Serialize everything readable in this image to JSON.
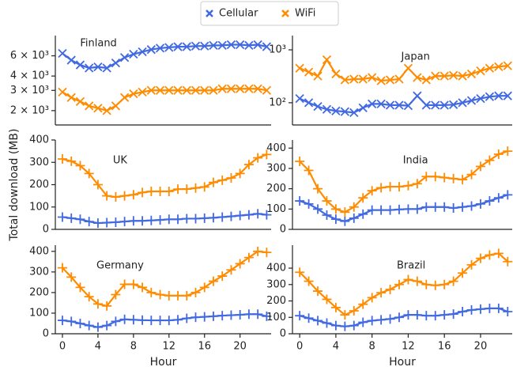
{
  "chart_data": [
    {
      "type": "line",
      "title": "Finland",
      "log": true,
      "marker": "x",
      "x": [
        0,
        1,
        2,
        3,
        4,
        5,
        6,
        7,
        8,
        9,
        10,
        11,
        12,
        13,
        14,
        15,
        16,
        17,
        18,
        19,
        20,
        21,
        22,
        23
      ],
      "xlim": [
        -0.8,
        23.5
      ],
      "ylim": [
        1500,
        9000
      ],
      "yticks": [
        {
          "value": 2000,
          "label": "2 × 10³"
        },
        {
          "value": 3000,
          "label": "3 × 10³"
        },
        {
          "value": 4000,
          "label": "4 × 10³"
        },
        {
          "value": 6000,
          "label": "6 × 10³"
        }
      ],
      "series": [
        {
          "name": "Cellular",
          "color": "#4169e1",
          "values": [
            6300,
            5500,
            5000,
            4700,
            4800,
            4700,
            5200,
            5800,
            6200,
            6500,
            6800,
            7000,
            7100,
            7200,
            7200,
            7300,
            7300,
            7400,
            7400,
            7500,
            7500,
            7400,
            7500,
            7200
          ]
        },
        {
          "name": "WiFi",
          "color": "#ff8c00",
          "values": [
            2900,
            2600,
            2400,
            2200,
            2100,
            2000,
            2200,
            2600,
            2800,
            2900,
            3000,
            3000,
            3000,
            3000,
            3000,
            3000,
            3000,
            3000,
            3100,
            3100,
            3100,
            3100,
            3100,
            3000
          ]
        }
      ]
    },
    {
      "type": "line",
      "title": "Japan",
      "log": true,
      "marker": "x",
      "x": [
        0,
        1,
        2,
        3,
        4,
        5,
        6,
        7,
        8,
        9,
        10,
        11,
        12,
        13,
        14,
        15,
        16,
        17,
        18,
        19,
        20,
        21,
        22,
        23
      ],
      "xlim": [
        -0.8,
        23.5
      ],
      "ylim": [
        38,
        1860
      ],
      "yticks": [
        {
          "value": 100,
          "label": "10²"
        },
        {
          "value": 1000,
          "label": "10³"
        }
      ],
      "series": [
        {
          "name": "Cellular",
          "color": "#4169e1",
          "values": [
            120,
            100,
            85,
            75,
            70,
            68,
            65,
            80,
            95,
            95,
            90,
            90,
            88,
            135,
            90,
            90,
            90,
            92,
            100,
            110,
            120,
            130,
            135,
            135
          ]
        },
        {
          "name": "WiFi",
          "color": "#ff8c00",
          "values": [
            450,
            380,
            320,
            650,
            350,
            270,
            280,
            280,
            300,
            260,
            270,
            280,
            450,
            300,
            270,
            320,
            320,
            330,
            320,
            350,
            400,
            450,
            480,
            500
          ]
        }
      ]
    },
    {
      "type": "line",
      "title": "UK",
      "ylabel": "Total download (MB)",
      "marker": "+",
      "x": [
        0,
        1,
        2,
        3,
        4,
        5,
        6,
        7,
        8,
        9,
        10,
        11,
        12,
        13,
        14,
        15,
        16,
        17,
        18,
        19,
        20,
        21,
        22,
        23
      ],
      "xlim": [
        -0.8,
        23.5
      ],
      "ylim": [
        0,
        400
      ],
      "yticks": [
        0,
        100,
        200,
        300,
        400
      ],
      "series": [
        {
          "name": "Cellular",
          "color": "#4169e1",
          "values": [
            55,
            50,
            45,
            35,
            28,
            30,
            32,
            35,
            38,
            38,
            40,
            42,
            45,
            45,
            48,
            48,
            50,
            52,
            55,
            58,
            62,
            65,
            70,
            65
          ]
        },
        {
          "name": "WiFi",
          "color": "#ff8c00",
          "values": [
            315,
            305,
            285,
            250,
            200,
            150,
            145,
            150,
            155,
            165,
            170,
            170,
            170,
            180,
            180,
            185,
            190,
            210,
            220,
            230,
            250,
            290,
            320,
            335
          ]
        }
      ]
    },
    {
      "type": "line",
      "title": "India",
      "marker": "+",
      "x": [
        0,
        1,
        2,
        3,
        4,
        5,
        6,
        7,
        8,
        9,
        10,
        11,
        12,
        13,
        14,
        15,
        16,
        17,
        18,
        19,
        20,
        21,
        22,
        23
      ],
      "xlim": [
        -0.8,
        23.5
      ],
      "ylim": [
        0,
        440
      ],
      "yticks": [
        0,
        100,
        200,
        300,
        400
      ],
      "series": [
        {
          "name": "Cellular",
          "color": "#4169e1",
          "values": [
            140,
            125,
            100,
            70,
            50,
            40,
            55,
            75,
            95,
            95,
            95,
            98,
            100,
            100,
            110,
            110,
            110,
            105,
            110,
            115,
            125,
            140,
            155,
            170
          ]
        },
        {
          "name": "WiFi",
          "color": "#ff8c00",
          "values": [
            335,
            290,
            200,
            140,
            100,
            85,
            110,
            155,
            190,
            205,
            210,
            210,
            215,
            225,
            260,
            260,
            255,
            250,
            245,
            270,
            310,
            340,
            370,
            385
          ]
        }
      ]
    },
    {
      "type": "line",
      "title": "Germany",
      "xlabel": "Hour",
      "marker": "+",
      "x": [
        0,
        1,
        2,
        3,
        4,
        5,
        6,
        7,
        8,
        9,
        10,
        11,
        12,
        13,
        14,
        15,
        16,
        17,
        18,
        19,
        20,
        21,
        22,
        23
      ],
      "xlim": [
        -0.8,
        23.5
      ],
      "ylim": [
        0,
        430
      ],
      "yticks": [
        0,
        100,
        200,
        300,
        400
      ],
      "xticks": [
        0,
        4,
        8,
        12,
        16,
        20
      ],
      "series": [
        {
          "name": "Cellular",
          "color": "#4169e1",
          "values": [
            65,
            60,
            50,
            40,
            32,
            40,
            60,
            70,
            68,
            66,
            65,
            65,
            65,
            68,
            75,
            80,
            82,
            85,
            88,
            90,
            92,
            95,
            95,
            85
          ]
        },
        {
          "name": "WiFi",
          "color": "#ff8c00",
          "values": [
            320,
            275,
            225,
            180,
            145,
            135,
            190,
            240,
            240,
            225,
            200,
            190,
            185,
            185,
            185,
            200,
            225,
            255,
            280,
            310,
            340,
            370,
            400,
            395
          ]
        }
      ]
    },
    {
      "type": "line",
      "title": "Brazil",
      "xlabel": "Hour",
      "marker": "+",
      "x": [
        0,
        1,
        2,
        3,
        4,
        5,
        6,
        7,
        8,
        9,
        10,
        11,
        12,
        13,
        14,
        15,
        16,
        17,
        18,
        19,
        20,
        21,
        22,
        23
      ],
      "xlim": [
        -0.8,
        23.5
      ],
      "ylim": [
        0,
        540
      ],
      "yticks": [
        0,
        100,
        200,
        300,
        400
      ],
      "xticks": [
        0,
        4,
        8,
        12,
        16,
        20
      ],
      "series": [
        {
          "name": "Cellular",
          "color": "#4169e1",
          "values": [
            110,
            95,
            80,
            65,
            50,
            45,
            50,
            70,
            80,
            85,
            90,
            100,
            115,
            115,
            110,
            110,
            115,
            120,
            135,
            145,
            150,
            155,
            155,
            135
          ]
        },
        {
          "name": "WiFi",
          "color": "#ff8c00",
          "values": [
            375,
            320,
            260,
            210,
            160,
            115,
            140,
            180,
            220,
            250,
            270,
            300,
            330,
            320,
            300,
            295,
            300,
            320,
            370,
            420,
            460,
            480,
            490,
            440
          ]
        }
      ]
    }
  ]
}
